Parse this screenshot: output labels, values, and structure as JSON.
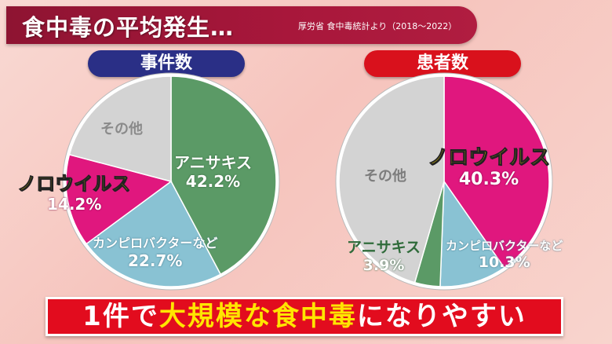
{
  "header": {
    "title": "食中毒の平均発生…",
    "source": "厚労省 食中毒統計より（2018〜2022）"
  },
  "colors": {
    "header_bg": "#a8173b",
    "left_pill": "#2a2f86",
    "right_pill": "#d9111c",
    "anisakis": "#5b9a66",
    "campylobacter": "#89c2d3",
    "norovirus": "#e0177e",
    "other": "#d3d3d3",
    "highlight_text": "#ffe500"
  },
  "chart_data": [
    {
      "type": "pie",
      "title": "事件数",
      "slices": [
        {
          "label": "アニサキス",
          "value": 42.2,
          "value_label": "42.2%"
        },
        {
          "label": "カンピロバクターなど",
          "value": 22.7,
          "value_label": "22.7%"
        },
        {
          "label": "ノロウイルス",
          "value": 14.2,
          "value_label": "14.2%"
        },
        {
          "label": "その他",
          "value": 20.9,
          "value_label": ""
        }
      ]
    },
    {
      "type": "pie",
      "title": "患者数",
      "slices": [
        {
          "label": "ノロウイルス",
          "value": 40.3,
          "value_label": "40.3%"
        },
        {
          "label": "カンピロバクターなど",
          "value": 10.3,
          "value_label": "10.3%"
        },
        {
          "label": "アニサキス",
          "value": 3.9,
          "value_label": "3.9%"
        },
        {
          "label": "その他",
          "value": 45.5,
          "value_label": ""
        }
      ]
    }
  ],
  "banner": {
    "part1": "1件で",
    "part2": "大規模な食中毒",
    "part3": "になりやすい"
  }
}
